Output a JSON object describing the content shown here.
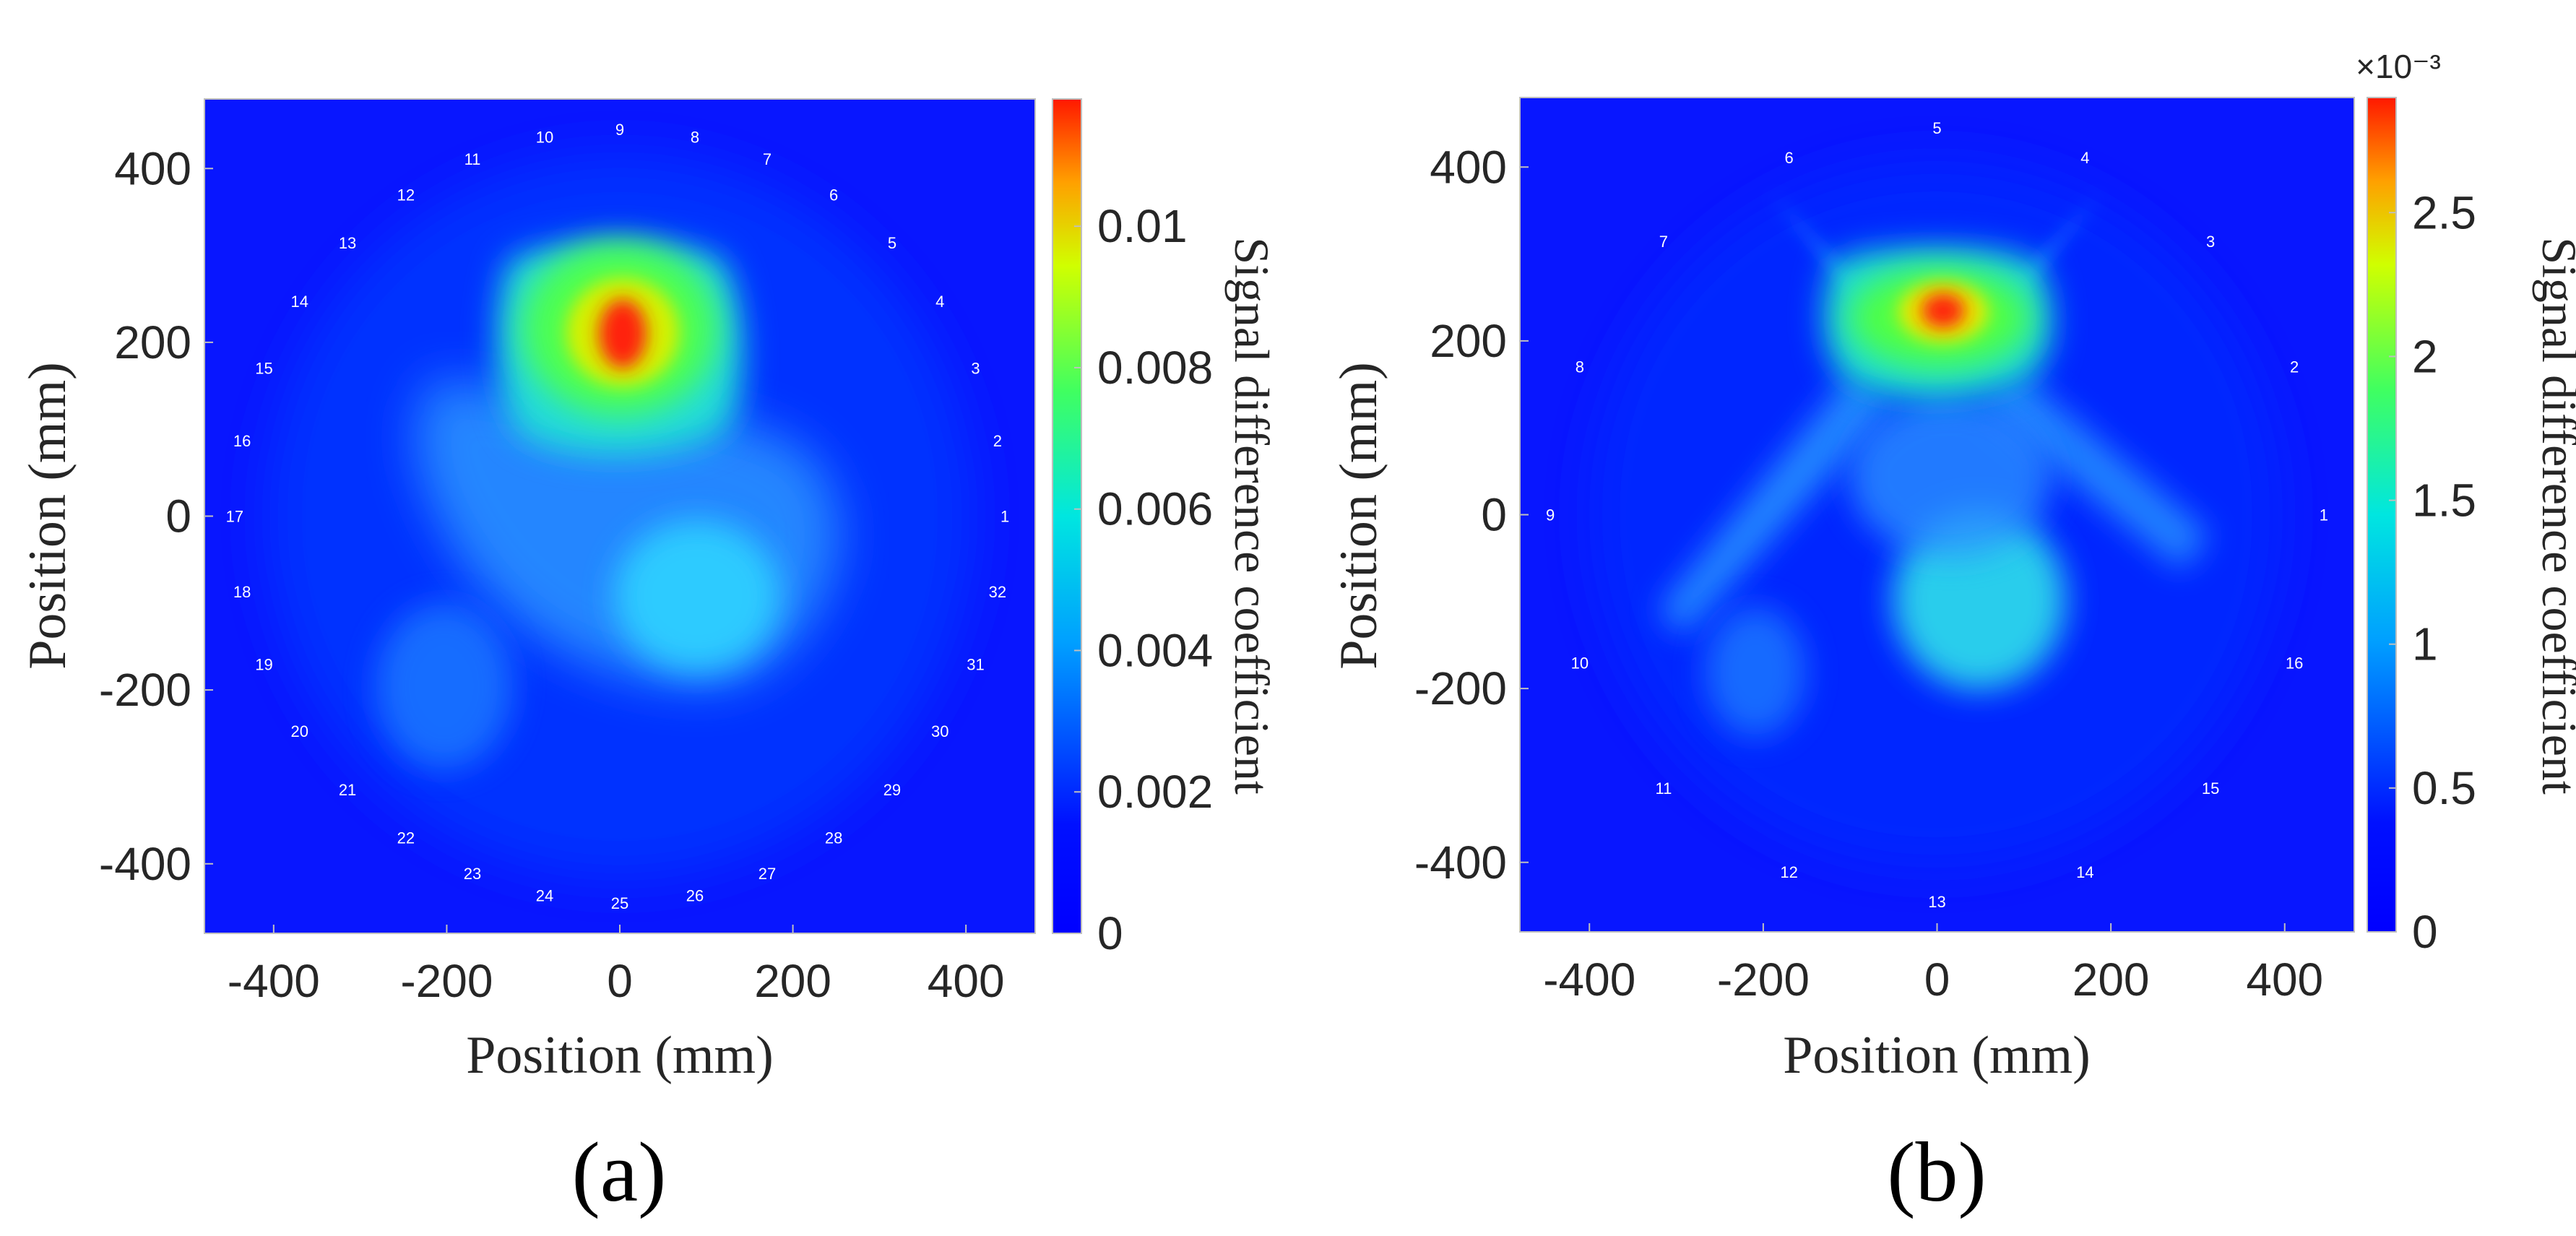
{
  "chart_data": [
    {
      "type": "heatmap",
      "panel_label": "(a)",
      "xlabel": "Position (mm)",
      "ylabel": "Position (mm)",
      "xlim": [
        -480,
        480
      ],
      "ylim": [
        -480,
        480
      ],
      "xticks": [
        "-400",
        "-200",
        "0",
        "200",
        "400"
      ],
      "yticks": [
        "400",
        "200",
        "0",
        "-200",
        "-400"
      ],
      "colorbar": {
        "label": "Signal difference coefficient",
        "range": [
          0,
          0.0118
        ],
        "ticks": [
          "0",
          "0.002",
          "0.004",
          "0.006",
          "0.008",
          "0.01"
        ],
        "tick_values": [
          0,
          0.002,
          0.004,
          0.006,
          0.008,
          0.01
        ],
        "exponent_label": ""
      },
      "sensor_count": 32,
      "sensor_radius_mm": 445,
      "sensor_labels": [
        "1",
        "2",
        "3",
        "4",
        "5",
        "6",
        "7",
        "8",
        "9",
        "10",
        "11",
        "12",
        "13",
        "14",
        "15",
        "16",
        "17",
        "18",
        "19",
        "20",
        "21",
        "22",
        "23",
        "24",
        "25",
        "26",
        "27",
        "28",
        "29",
        "30",
        "31",
        "32"
      ],
      "hotspots": [
        {
          "x_mm": 0,
          "y_mm": 210,
          "value": 0.0118
        },
        {
          "x_mm": 95,
          "y_mm": -110,
          "value": 0.0055
        },
        {
          "x_mm": -190,
          "y_mm": -200,
          "value": 0.0038
        }
      ]
    },
    {
      "type": "heatmap",
      "panel_label": "(b)",
      "xlabel": "Position (mm)",
      "ylabel": "Position (mm)",
      "xlim": [
        -480,
        480
      ],
      "ylim": [
        -480,
        480
      ],
      "xticks": [
        "-400",
        "-200",
        "0",
        "200",
        "400"
      ],
      "yticks": [
        "400",
        "200",
        "0",
        "-200",
        "-400"
      ],
      "colorbar": {
        "label": "Signal difference coefficient",
        "range": [
          0,
          0.0029
        ],
        "ticks": [
          "0",
          "0.5",
          "1",
          "1.5",
          "2",
          "2.5"
        ],
        "tick_values": [
          0,
          0.0005,
          0.001,
          0.0015,
          0.002,
          0.0025
        ],
        "exponent_label": "×10⁻³"
      },
      "sensor_count": 16,
      "sensor_radius_mm": 445,
      "sensor_labels": [
        "1",
        "2",
        "3",
        "4",
        "5",
        "6",
        "7",
        "8",
        "9",
        "10",
        "11",
        "12",
        "13",
        "14",
        "15",
        "16"
      ],
      "hotspots": [
        {
          "x_mm": 10,
          "y_mm": 235,
          "value": 0.0029
        },
        {
          "x_mm": 60,
          "y_mm": -100,
          "value": 0.0015
        },
        {
          "x_mm": -200,
          "y_mm": -180,
          "value": 0.001
        }
      ]
    }
  ]
}
